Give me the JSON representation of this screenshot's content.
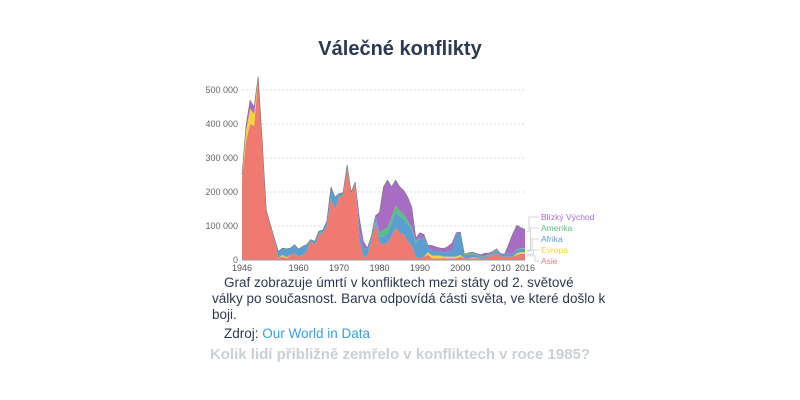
{
  "title": "Válečné konflikty",
  "caption": "Graf zobrazuje úmrtí v konfliktech mezi státy od 2. světové války po současnost. Barva odpovídá části světa, ve které došlo k boji.",
  "source": {
    "label": "Zdroj:",
    "link_text": "Our World in Data"
  },
  "question": "Kolik lidí přibližně zemřelo v konfliktech v roce 1985?",
  "chart_data": {
    "type": "area",
    "stacked": true,
    "xlim": [
      1946,
      2016
    ],
    "ylim": [
      0,
      550000
    ],
    "x_ticks": [
      "1946",
      "1960",
      "1970",
      "1980",
      "1990",
      "2000",
      "2010",
      "2016"
    ],
    "y_ticks": [
      "0",
      "100 000",
      "200 000",
      "300 000",
      "400 000",
      "500 000"
    ],
    "y_tick_values": [
      0,
      100000,
      200000,
      300000,
      400000,
      500000
    ],
    "grid": "horizontal dotted",
    "legend": "right",
    "start_year": 1946,
    "series": [
      {
        "name": "Asie",
        "color": "#ef7b70",
        "values": [
          240000,
          350000,
          400000,
          395000,
          540000,
          350000,
          145000,
          100000,
          60000,
          5000,
          10000,
          5000,
          15000,
          20000,
          10000,
          15000,
          25000,
          55000,
          45000,
          75000,
          80000,
          100000,
          180000,
          150000,
          185000,
          190000,
          270000,
          195000,
          225000,
          60000,
          10000,
          10000,
          60000,
          110000,
          50000,
          45000,
          50000,
          70000,
          95000,
          80000,
          75000,
          55000,
          40000,
          10000,
          5000,
          10000,
          15000,
          5000,
          5000,
          5000,
          5000,
          5000,
          5000,
          5000,
          10000,
          5000,
          5000,
          5000,
          5000,
          3000,
          5000,
          10000,
          15000,
          20000,
          10000,
          10000,
          10000,
          10000,
          15000,
          18000,
          18000
        ]
      },
      {
        "name": "Evropa",
        "color": "#f6d33c",
        "values": [
          10000,
          30000,
          45000,
          35000,
          0,
          0,
          0,
          0,
          0,
          0,
          5000,
          3000,
          0,
          0,
          0,
          0,
          0,
          0,
          0,
          0,
          0,
          0,
          0,
          0,
          0,
          0,
          0,
          0,
          0,
          0,
          0,
          0,
          0,
          0,
          0,
          0,
          0,
          0,
          0,
          0,
          0,
          0,
          0,
          0,
          0,
          0,
          8000,
          8000,
          8000,
          8000,
          5000,
          5000,
          5000,
          5000,
          5000,
          0,
          0,
          2000,
          2000,
          0,
          0,
          0,
          0,
          0,
          0,
          0,
          0,
          0,
          5000,
          5000,
          5000
        ]
      },
      {
        "name": "Afrika",
        "color": "#5b9fd1",
        "values": [
          0,
          0,
          0,
          0,
          0,
          0,
          3000,
          5000,
          5000,
          20000,
          20000,
          25000,
          20000,
          25000,
          22000,
          25000,
          20000,
          5000,
          10000,
          10000,
          8000,
          15000,
          35000,
          35000,
          10000,
          8000,
          10000,
          5000,
          5000,
          25000,
          25000,
          25000,
          10000,
          20000,
          20000,
          25000,
          30000,
          40000,
          45000,
          50000,
          45000,
          50000,
          50000,
          40000,
          60000,
          55000,
          15000,
          15000,
          15000,
          12000,
          12000,
          15000,
          20000,
          65000,
          62000,
          10000,
          10000,
          10000,
          8000,
          5000,
          5000,
          3000,
          5000,
          8000,
          8000,
          8000,
          8000,
          8000,
          10000,
          10000,
          10000
        ]
      },
      {
        "name": "Amerika",
        "color": "#55c27b",
        "values": [
          0,
          0,
          0,
          0,
          0,
          0,
          0,
          0,
          0,
          0,
          0,
          0,
          0,
          0,
          0,
          0,
          0,
          0,
          0,
          0,
          0,
          0,
          0,
          0,
          0,
          0,
          0,
          0,
          0,
          0,
          0,
          0,
          0,
          0,
          10000,
          20000,
          15000,
          15000,
          20000,
          15000,
          15000,
          10000,
          5000,
          5000,
          0,
          0,
          0,
          0,
          0,
          0,
          0,
          0,
          0,
          0,
          0,
          3000,
          3000,
          3000,
          2000,
          2000,
          2000,
          2000,
          2000,
          2000,
          0,
          0,
          0,
          0,
          2000,
          2000,
          2000
        ]
      },
      {
        "name": "Blízký Východ",
        "color": "#a76dc5",
        "values": [
          0,
          15000,
          25000,
          20000,
          0,
          0,
          0,
          0,
          0,
          0,
          0,
          0,
          0,
          0,
          0,
          0,
          0,
          0,
          0,
          0,
          0,
          0,
          0,
          0,
          0,
          0,
          0,
          0,
          0,
          40000,
          20000,
          0,
          0,
          0,
          60000,
          125000,
          140000,
          90000,
          75000,
          70000,
          70000,
          70000,
          60000,
          10000,
          15000,
          10000,
          5000,
          15000,
          10000,
          10000,
          12000,
          15000,
          20000,
          5000,
          5000,
          0,
          3000,
          3000,
          2000,
          5000,
          8000,
          5000,
          3000,
          3000,
          0,
          0,
          30000,
          60000,
          70000,
          60000,
          55000
        ]
      }
    ]
  }
}
